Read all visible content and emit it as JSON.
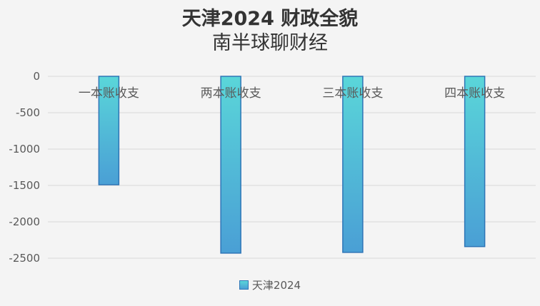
{
  "chart_data": {
    "type": "bar",
    "title": "天津2024 财政全貌",
    "subtitle": "南半球聊财经",
    "categories": [
      "一本账收支",
      "两本账收支",
      "三本账收支",
      "四本账收支"
    ],
    "series": [
      {
        "name": "天津2024",
        "values": [
          -1490,
          -2430,
          -2420,
          -2340
        ]
      }
    ],
    "ylim": [
      -2500,
      0
    ],
    "yticks": [
      0,
      -500,
      -1000,
      -1500,
      -2000,
      -2500
    ],
    "ytick_labels": [
      "0",
      "-500",
      "-1000",
      "-1500",
      "-2000",
      "-2500"
    ],
    "xlabel": "",
    "ylabel": "",
    "grid": true,
    "legend_position": "bottom",
    "colors": {
      "bar_top": "#5ad6d9",
      "bar_bottom": "#4a9fd5",
      "bar_edge": "#2e75b6",
      "grid": "#d9d9d9"
    }
  }
}
